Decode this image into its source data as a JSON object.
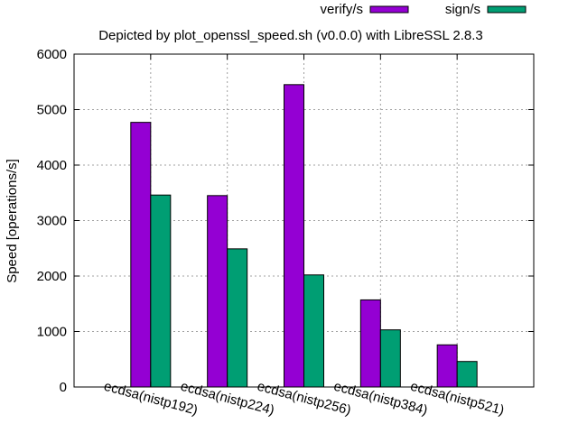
{
  "chart_data": {
    "type": "bar",
    "title": "Depicted by plot_openssl_speed.sh (v0.0.0) with LibreSSL 2.8.3",
    "xlabel": "",
    "ylabel": "Speed [operations/s]",
    "ylim": [
      0,
      6000
    ],
    "yticks": [
      0,
      1000,
      2000,
      3000,
      4000,
      5000,
      6000
    ],
    "grid": true,
    "legend_position": "top-right",
    "categories": [
      "ecdsa(nistp192)",
      "ecdsa(nistp224)",
      "ecdsa(nistp256)",
      "ecdsa(nistp384)",
      "ecdsa(nistp521)"
    ],
    "series": [
      {
        "name": "verify/s",
        "color": "#9400d3",
        "values": [
          4770,
          3450,
          5450,
          1570,
          760
        ]
      },
      {
        "name": "sign/s",
        "color": "#009e73",
        "values": [
          3460,
          2490,
          2020,
          1030,
          460
        ]
      }
    ]
  }
}
